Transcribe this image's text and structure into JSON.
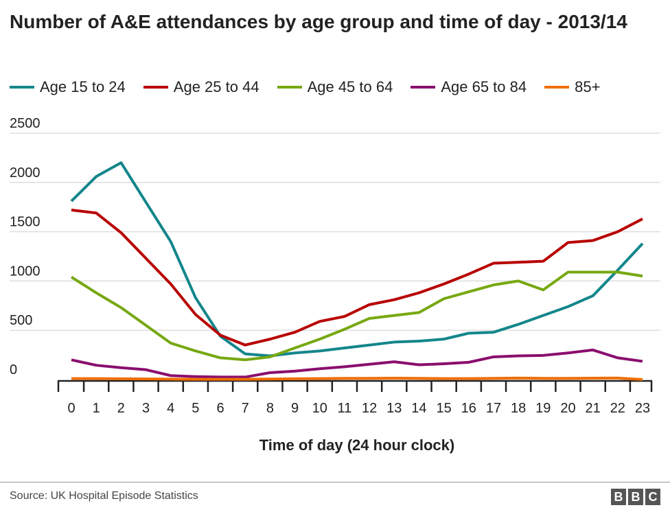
{
  "chart_data": {
    "type": "line",
    "title": "Number of A&E attendances by age group and time of day - 2013/14",
    "xlabel": "Time of day (24 hour clock)",
    "ylabel": "",
    "x": [
      0,
      1,
      2,
      3,
      4,
      5,
      6,
      7,
      8,
      9,
      10,
      11,
      12,
      13,
      14,
      15,
      16,
      17,
      18,
      19,
      20,
      21,
      22,
      23
    ],
    "ylim": [
      0,
      2500
    ],
    "yticks": [
      0,
      500,
      1000,
      1500,
      2000,
      2500
    ],
    "grid": true,
    "legend": "top",
    "series": [
      {
        "name": "Age 15 to 24",
        "color": "#13868b",
        "values": [
          1810,
          2060,
          2200,
          1800,
          1400,
          830,
          440,
          260,
          240,
          270,
          290,
          320,
          350,
          380,
          390,
          410,
          470,
          480,
          560,
          650,
          740,
          850,
          1110,
          1380
        ]
      },
      {
        "name": "Age 25 to 44",
        "color": "#b80000",
        "values": [
          1720,
          1690,
          1490,
          1230,
          970,
          660,
          450,
          350,
          410,
          480,
          590,
          640,
          760,
          810,
          880,
          970,
          1070,
          1180,
          1190,
          1200,
          1390,
          1410,
          1500,
          1630
        ]
      },
      {
        "name": "Age 45 to 64",
        "color": "#76a811",
        "values": [
          1040,
          880,
          730,
          550,
          370,
          290,
          220,
          200,
          230,
          320,
          410,
          510,
          620,
          650,
          680,
          820,
          890,
          960,
          1000,
          910,
          1090,
          1090,
          1090,
          1050
        ]
      },
      {
        "name": "Age 65 to 84",
        "color": "#8a0e6e",
        "values": [
          200,
          145,
          120,
          100,
          40,
          30,
          25,
          25,
          70,
          85,
          110,
          130,
          155,
          180,
          150,
          160,
          175,
          230,
          240,
          245,
          270,
          300,
          220,
          185
        ]
      },
      {
        "name": "85+",
        "color": "#f06e00",
        "values": [
          10,
          10,
          8,
          6,
          4,
          3,
          3,
          3,
          5,
          8,
          10,
          12,
          12,
          14,
          12,
          10,
          10,
          12,
          15,
          12,
          12,
          14,
          15,
          0
        ]
      }
    ]
  },
  "footer": {
    "source": "Source: UK Hospital Episode Statistics",
    "logo": "BBC"
  }
}
